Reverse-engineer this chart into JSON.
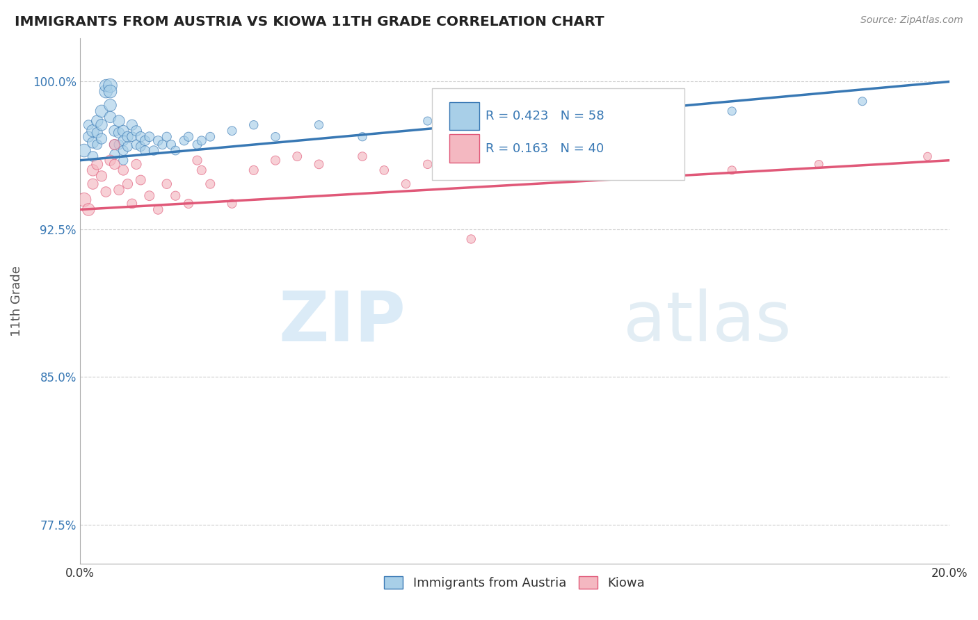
{
  "title": "IMMIGRANTS FROM AUSTRIA VS KIOWA 11TH GRADE CORRELATION CHART",
  "source_text": "Source: ZipAtlas.com",
  "ylabel_label": "11th Grade",
  "xmin": 0.0,
  "xmax": 0.2,
  "ymin": 0.755,
  "ymax": 1.022,
  "ytick_vals": [
    0.775,
    0.85,
    0.925,
    1.0
  ],
  "ytick_labels": [
    "77.5%",
    "85.0%",
    "92.5%",
    "100.0%"
  ],
  "xtick_vals": [
    0.0,
    0.2
  ],
  "xtick_labels": [
    "0.0%",
    "20.0%"
  ],
  "color_blue": "#a8cfe8",
  "color_pink": "#f4b8c1",
  "line_color_blue": "#3878b4",
  "line_color_pink": "#e05878",
  "watermark_zip_color": "#c8dff0",
  "watermark_atlas_color": "#c0d8e8",
  "blue_scatter_x": [
    0.001,
    0.002,
    0.002,
    0.003,
    0.003,
    0.003,
    0.004,
    0.004,
    0.004,
    0.005,
    0.005,
    0.005,
    0.006,
    0.006,
    0.007,
    0.007,
    0.007,
    0.007,
    0.008,
    0.008,
    0.008,
    0.009,
    0.009,
    0.009,
    0.01,
    0.01,
    0.01,
    0.01,
    0.011,
    0.011,
    0.012,
    0.012,
    0.013,
    0.013,
    0.014,
    0.014,
    0.015,
    0.015,
    0.016,
    0.017,
    0.018,
    0.019,
    0.02,
    0.021,
    0.022,
    0.024,
    0.025,
    0.027,
    0.028,
    0.03,
    0.035,
    0.04,
    0.045,
    0.055,
    0.065,
    0.08,
    0.15,
    0.18
  ],
  "blue_scatter_y": [
    0.965,
    0.972,
    0.978,
    0.975,
    0.969,
    0.962,
    0.98,
    0.974,
    0.968,
    0.985,
    0.978,
    0.971,
    0.995,
    0.998,
    0.998,
    0.995,
    0.988,
    0.982,
    0.975,
    0.968,
    0.963,
    0.98,
    0.974,
    0.968,
    0.975,
    0.97,
    0.965,
    0.96,
    0.972,
    0.967,
    0.978,
    0.972,
    0.975,
    0.968,
    0.972,
    0.967,
    0.97,
    0.965,
    0.972,
    0.965,
    0.97,
    0.968,
    0.972,
    0.968,
    0.965,
    0.97,
    0.972,
    0.968,
    0.97,
    0.972,
    0.975,
    0.978,
    0.972,
    0.978,
    0.972,
    0.98,
    0.985,
    0.99
  ],
  "blue_sizes": [
    180,
    120,
    100,
    160,
    130,
    110,
    140,
    120,
    100,
    160,
    140,
    120,
    180,
    160,
    200,
    180,
    160,
    140,
    130,
    110,
    100,
    140,
    120,
    100,
    130,
    110,
    100,
    90,
    120,
    100,
    120,
    100,
    115,
    100,
    110,
    95,
    105,
    95,
    100,
    95,
    95,
    90,
    90,
    88,
    85,
    88,
    90,
    85,
    88,
    85,
    85,
    80,
    80,
    78,
    78,
    75,
    75,
    75
  ],
  "pink_scatter_x": [
    0.001,
    0.002,
    0.003,
    0.003,
    0.004,
    0.005,
    0.006,
    0.007,
    0.008,
    0.008,
    0.009,
    0.01,
    0.011,
    0.012,
    0.013,
    0.014,
    0.016,
    0.018,
    0.02,
    0.022,
    0.025,
    0.027,
    0.028,
    0.03,
    0.035,
    0.04,
    0.045,
    0.05,
    0.055,
    0.065,
    0.07,
    0.075,
    0.08,
    0.09,
    0.1,
    0.11,
    0.13,
    0.15,
    0.17,
    0.195
  ],
  "pink_scatter_y": [
    0.94,
    0.935,
    0.955,
    0.948,
    0.958,
    0.952,
    0.944,
    0.96,
    0.968,
    0.958,
    0.945,
    0.955,
    0.948,
    0.938,
    0.958,
    0.95,
    0.942,
    0.935,
    0.948,
    0.942,
    0.938,
    0.96,
    0.955,
    0.948,
    0.938,
    0.955,
    0.96,
    0.962,
    0.958,
    0.962,
    0.955,
    0.948,
    0.958,
    0.92,
    0.958,
    0.962,
    0.958,
    0.955,
    0.958,
    0.962
  ],
  "pink_sizes": [
    200,
    160,
    140,
    120,
    130,
    120,
    110,
    120,
    120,
    110,
    110,
    110,
    105,
    100,
    105,
    100,
    100,
    95,
    95,
    90,
    90,
    90,
    88,
    88,
    85,
    88,
    88,
    85,
    85,
    82,
    82,
    80,
    80,
    80,
    78,
    78,
    75,
    75,
    72,
    70
  ],
  "blue_trend_x": [
    0.0,
    0.2
  ],
  "blue_trend_y": [
    0.96,
    1.0
  ],
  "pink_trend_x": [
    0.0,
    0.2
  ],
  "pink_trend_y": [
    0.935,
    0.96
  ],
  "legend_r1": "R = 0.423",
  "legend_n1": "N = 58",
  "legend_r2": "R = 0.163",
  "legend_n2": "N = 40"
}
